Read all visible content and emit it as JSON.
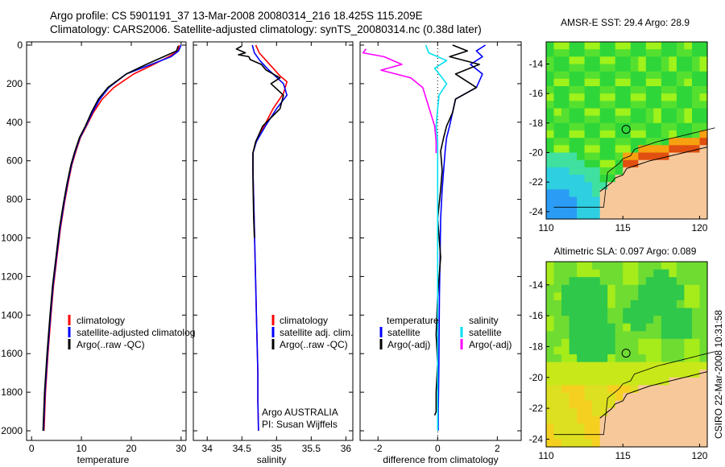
{
  "title_line1": "Argo profile: CS 5901191_37 13-Mar-2008 20080314_216 18.425S 115.209E",
  "title_line2": "Climatology: CARS2006. Satellite-adjusted climatology: synTS_20080314.nc (0.38d later)",
  "stamp": "CSIRO 22-Mar-2008 10:31:58",
  "colors": {
    "red": "#ff0000",
    "blue": "#0000ff",
    "black": "#000000",
    "cyan": "#00e0f0",
    "magenta": "#ff00ff",
    "land": "#f7c89a"
  },
  "chart_data": [
    {
      "type": "line",
      "xlabel": "temperature",
      "ylabel": "",
      "xlim": [
        -1,
        31
      ],
      "ylim": [
        2050,
        0
      ],
      "xticks": [
        "0",
        "10",
        "20",
        "30"
      ],
      "yticks": [
        "0",
        "200",
        "400",
        "600",
        "800",
        "1000",
        "1200",
        "1400",
        "1600",
        "1800",
        "2000"
      ],
      "legend": [
        "climatology",
        "satellite-adjusted climatolog",
        "Argo(..raw -QC)"
      ],
      "series": [
        {
          "name": "climatology",
          "color": "red",
          "x": [
            29.6,
            29.4,
            27.5,
            24.5,
            20.5,
            16.5,
            14.2,
            12.4,
            11.0,
            9.8,
            8.9,
            8.1,
            7.3,
            6.6,
            5.8,
            5.1,
            4.4,
            3.9,
            3.3,
            2.8,
            2.5
          ],
          "y": [
            0,
            30,
            60,
            100,
            150,
            220,
            280,
            350,
            420,
            480,
            550,
            620,
            720,
            820,
            950,
            1100,
            1250,
            1400,
            1600,
            1800,
            2000
          ]
        },
        {
          "name": "satellite-adjusted climatology",
          "color": "blue",
          "x": [
            30.0,
            29.5,
            28.0,
            24.0,
            19.0,
            15.5,
            13.7,
            12.2,
            10.9,
            9.7,
            8.8,
            8.0,
            7.2,
            6.5,
            5.7,
            5.0,
            4.3,
            3.8,
            3.2,
            2.7,
            2.4
          ],
          "y": [
            0,
            30,
            60,
            100,
            150,
            220,
            280,
            350,
            420,
            480,
            550,
            620,
            720,
            820,
            950,
            1100,
            1250,
            1400,
            1600,
            1800,
            2000
          ]
        },
        {
          "name": "Argo(..raw -QC)",
          "color": "black",
          "x": [
            29.4,
            29.1,
            26.5,
            23.0,
            19.0,
            15.3,
            13.4,
            12.0,
            10.8,
            9.6,
            8.7,
            7.9,
            7.1,
            6.4,
            5.6,
            4.9,
            4.2,
            3.7,
            3.1,
            2.6,
            2.3
          ],
          "y": [
            5,
            30,
            60,
            100,
            150,
            220,
            280,
            350,
            420,
            480,
            550,
            620,
            720,
            820,
            950,
            1100,
            1250,
            1400,
            1600,
            1800,
            2000
          ]
        }
      ]
    },
    {
      "type": "line",
      "xlabel": "salinity",
      "xlim": [
        33.8,
        36.1
      ],
      "ylim": [
        2050,
        0
      ],
      "xticks": [
        "34",
        "34.5",
        "35",
        "35.5",
        "36"
      ],
      "legend": [
        "climatology",
        "satellite adj. clim.",
        "Argo(..raw -QC)"
      ],
      "annotations": [
        "Argo AUSTRALIA",
        "PI: Susan Wijffels"
      ],
      "series": [
        {
          "name": "climatology",
          "color": "red",
          "x": [
            34.7,
            34.75,
            34.85,
            34.95,
            35.05,
            35.15,
            35.1,
            34.95,
            34.82,
            34.7,
            34.66,
            34.66,
            34.67,
            34.68,
            34.69,
            34.7,
            34.71,
            34.72,
            34.73,
            34.73,
            34.74
          ],
          "y": [
            0,
            40,
            80,
            120,
            160,
            190,
            250,
            330,
            420,
            500,
            560,
            650,
            800,
            950,
            1100,
            1250,
            1400,
            1550,
            1700,
            1850,
            2000
          ]
        },
        {
          "name": "satellite adj. clim.",
          "color": "blue",
          "x": [
            34.65,
            34.68,
            34.76,
            34.86,
            34.98,
            35.1,
            35.15,
            35.0,
            34.84,
            34.71,
            34.66,
            34.66,
            34.67,
            34.68,
            34.69,
            34.7,
            34.71,
            34.72,
            34.73,
            34.73,
            34.74
          ],
          "y": [
            0,
            40,
            80,
            120,
            160,
            200,
            260,
            330,
            420,
            500,
            560,
            650,
            800,
            950,
            1100,
            1250,
            1400,
            1550,
            1700,
            1850,
            2000
          ]
        },
        {
          "name": "Argo(..raw -QC)",
          "color": "black",
          "x": [
            34.5,
            34.42,
            34.55,
            34.45,
            34.6,
            34.62,
            34.78,
            34.85,
            35.05,
            34.92,
            35.1,
            35.05,
            34.8,
            34.7,
            34.66,
            34.66,
            34.67,
            34.68
          ],
          "y": [
            5,
            20,
            40,
            50,
            60,
            75,
            100,
            130,
            170,
            200,
            260,
            330,
            420,
            500,
            560,
            700,
            900,
            1000
          ]
        }
      ]
    },
    {
      "type": "line",
      "xlabel": "difference from climatology",
      "xlim": [
        -2.6,
        2.8
      ],
      "ylim": [
        2050,
        0
      ],
      "xticks": [
        "-2",
        "0",
        "2"
      ],
      "legend_left_title": "temperature",
      "legend_left": [
        "satellite",
        "Argo(-adj)"
      ],
      "legend_right_title": "salinity",
      "legend_right": [
        "satellite",
        "Argo(-adj)"
      ],
      "series": [
        {
          "name": "temperature satellite",
          "color": "blue",
          "x": [
            1.6,
            1.3,
            1.5,
            1.1,
            1.5,
            1.3,
            0.6,
            0.5,
            0.4,
            0.3,
            0.25,
            0.2,
            0.15,
            0.1,
            0.08,
            0.06,
            0.05,
            0.04,
            0.03,
            0.02,
            0.02
          ],
          "y": [
            0,
            30,
            60,
            100,
            150,
            220,
            280,
            350,
            420,
            480,
            550,
            650,
            750,
            900,
            1100,
            1300,
            1500,
            1650,
            1800,
            1900,
            2000
          ]
        },
        {
          "name": "temperature Argo(-adj)",
          "color": "black",
          "x": [
            0.5,
            1.0,
            0.4,
            1.4,
            0.6,
            1.3,
            0.6,
            0.5,
            0.3,
            0.2,
            0.1,
            0.15,
            0.1,
            0.0,
            0.1,
            0.0,
            -0.05,
            0.0,
            -0.05,
            -0.05,
            -0.1
          ],
          "y": [
            0,
            30,
            60,
            100,
            150,
            220,
            280,
            350,
            420,
            480,
            550,
            650,
            750,
            900,
            1100,
            1300,
            1500,
            1650,
            1800,
            1900,
            1920
          ]
        },
        {
          "name": "salinity satellite",
          "color": "cyan",
          "x": [
            -0.4,
            -0.3,
            0.3,
            -0.1,
            0.1,
            0.3,
            0.05,
            0.0,
            -0.05,
            0.0,
            0.0,
            0.0,
            0.0,
            0.0,
            0.0,
            0.0,
            0.0
          ],
          "y": [
            0,
            40,
            80,
            120,
            160,
            200,
            260,
            330,
            420,
            500,
            560,
            700,
            900,
            1100,
            1400,
            1700,
            2000
          ]
        },
        {
          "name": "salinity Argo(-adj)",
          "color": "magenta",
          "x": [
            -2.4,
            -2.5,
            -1.8,
            -1.2,
            -1.9,
            -0.9,
            -0.5,
            -0.3,
            -0.1,
            -0.05,
            -0.05
          ],
          "y": [
            20,
            40,
            60,
            100,
            130,
            170,
            220,
            320,
            420,
            500,
            560
          ]
        }
      ]
    },
    {
      "type": "heatmap",
      "title": "AMSR-E SST: 29.4 Argo: 28.9",
      "xlim": [
        110,
        120.5
      ],
      "ylim": [
        -24.5,
        -12.5
      ],
      "xticks": [
        "110",
        "115",
        "120"
      ],
      "yticks": [
        "-14",
        "-16",
        "-18",
        "-20",
        "-22",
        "-24"
      ],
      "marker": {
        "lon": 115.209,
        "lat": -18.425
      }
    },
    {
      "type": "heatmap",
      "title": "Altimetric SLA: 0.097 Argo: 0.089",
      "xlim": [
        110,
        120.5
      ],
      "ylim": [
        -24.5,
        -12.5
      ],
      "xticks": [
        "110",
        "115",
        "120"
      ],
      "yticks": [
        "-14",
        "-16",
        "-18",
        "-20",
        "-22",
        "-24"
      ],
      "marker": {
        "lon": 115.209,
        "lat": -18.425
      }
    }
  ]
}
